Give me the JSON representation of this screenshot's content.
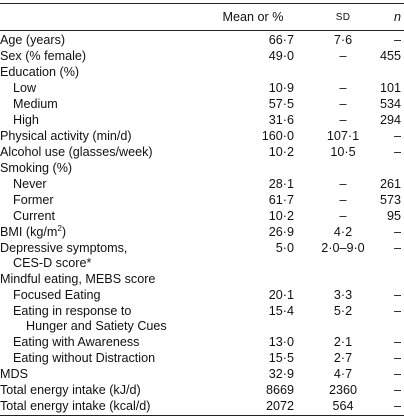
{
  "header": {
    "mean": "Mean or %",
    "sd": "SD",
    "n": "n"
  },
  "rows": [
    {
      "label": "Age (years)",
      "mean": "66·7",
      "sd": "7·6",
      "n": "–"
    },
    {
      "label": "Sex (% female)",
      "mean": "49·0",
      "sd": "–",
      "n": "455"
    },
    {
      "label": "Education (%)",
      "mean": "",
      "sd": "",
      "n": ""
    },
    {
      "label": "Low",
      "mean": "10·9",
      "sd": "–",
      "n": "101"
    },
    {
      "label": "Medium",
      "mean": "57·5",
      "sd": "–",
      "n": "534"
    },
    {
      "label": "High",
      "mean": "31·6",
      "sd": "–",
      "n": "294"
    },
    {
      "label": "Physical activity (min/d)",
      "mean": "160·0",
      "sd": "107·1",
      "n": "–"
    },
    {
      "label": "Alcohol use (glasses/week)",
      "mean": "10·2",
      "sd": "10·5",
      "n": "–"
    },
    {
      "label": "Smoking (%)",
      "mean": "",
      "sd": "",
      "n": ""
    },
    {
      "label": "Never",
      "mean": "28·1",
      "sd": "–",
      "n": "261"
    },
    {
      "label": "Former",
      "mean": "61·7",
      "sd": "–",
      "n": "573"
    },
    {
      "label": "Current",
      "mean": "10·2",
      "sd": "–",
      "n": "95"
    },
    {
      "label": "BMI (kg/m",
      "label_sup": "2",
      "label_after": ")",
      "mean": "26·9",
      "sd": "4·2",
      "n": "–"
    },
    {
      "label": "Depressive symptoms,",
      "mean": "5·0",
      "sd": "2·0–9·0",
      "n": "–"
    },
    {
      "label": "CES-D score*",
      "mean": "",
      "sd": "",
      "n": ""
    },
    {
      "label": "Mindful eating, MEBS score",
      "mean": "",
      "sd": "",
      "n": ""
    },
    {
      "label": "Focused Eating",
      "mean": "20·1",
      "sd": "3·3",
      "n": "–"
    },
    {
      "label": "Eating in response to",
      "mean": "15·4",
      "sd": "5·2",
      "n": "–"
    },
    {
      "label": "Hunger and Satiety Cues",
      "mean": "",
      "sd": "",
      "n": ""
    },
    {
      "label": "Eating with Awareness",
      "mean": "13·0",
      "sd": "2·1",
      "n": "–"
    },
    {
      "label": "Eating without Distraction",
      "mean": "15·5",
      "sd": "2·7",
      "n": "–"
    },
    {
      "label": "MDS",
      "mean": "32·9",
      "sd": "4·7",
      "n": "–"
    },
    {
      "label": "Total energy intake (kJ/d)",
      "mean": "8669",
      "sd": "2360",
      "n": "–"
    },
    {
      "label": "Total energy intake (kcal/d)",
      "mean": "2072",
      "sd": "564",
      "n": "–"
    }
  ]
}
